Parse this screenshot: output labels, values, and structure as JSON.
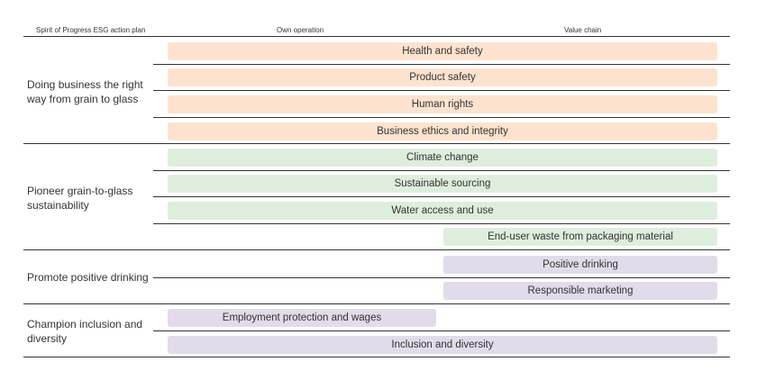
{
  "colors": {
    "orange": "#fde3cf",
    "green": "#deeedd",
    "purple": "#e2dbe9",
    "rule": "#333333"
  },
  "headers": {
    "plan": "Spirit of Progress ESG action plan",
    "own_operation": "Own operation",
    "value_chain": "Value chain"
  },
  "groups": [
    {
      "label": "Doing business the right way from grain to glass"
    },
    {
      "label": "Pioneer grain-to-glass sustainability"
    },
    {
      "label": "Promote positive drinking"
    },
    {
      "label": "Champion inclusion and diversity"
    }
  ],
  "topics": [
    {
      "label": "Health and safety",
      "scope": "own operation and value chain",
      "color": "orange"
    },
    {
      "label": "Product safety",
      "scope": "own operation and value chain",
      "color": "orange"
    },
    {
      "label": "Human rights",
      "scope": "own operation and value chain",
      "color": "orange"
    },
    {
      "label": "Business ethics and integrity",
      "scope": "own operation and value chain",
      "color": "orange"
    },
    {
      "label": "Climate change",
      "scope": "own operation and value chain",
      "color": "green"
    },
    {
      "label": "Sustainable sourcing",
      "scope": "own operation and value chain",
      "color": "green"
    },
    {
      "label": "Water access and use",
      "scope": "own operation and value chain",
      "color": "green"
    },
    {
      "label": "End-user waste from packaging material",
      "scope": "value chain",
      "color": "green"
    },
    {
      "label": "Positive drinking",
      "scope": "value chain",
      "color": "purple"
    },
    {
      "label": "Responsible marketing",
      "scope": "value chain",
      "color": "purple"
    },
    {
      "label": "Employment protection and wages",
      "scope": "own operation",
      "color": "purple"
    },
    {
      "label": "Inclusion and diversity",
      "scope": "own operation and value chain",
      "color": "purple"
    }
  ]
}
